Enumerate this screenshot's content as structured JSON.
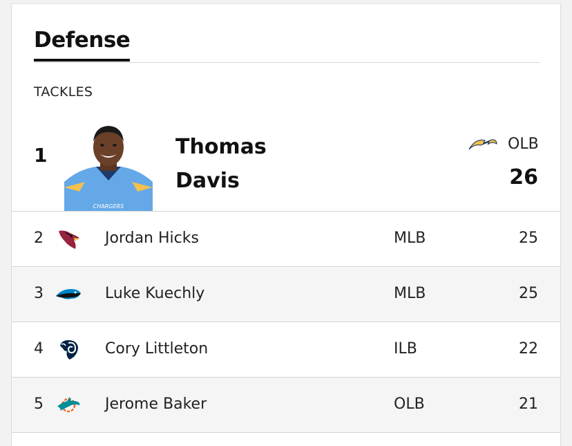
{
  "section": {
    "tab_label": "Defense",
    "stat_label": "TACKLES"
  },
  "leader": {
    "rank": "1",
    "first_name": "Thomas",
    "last_name": "Davis",
    "position": "OLB",
    "value": "26",
    "team_icon": "chargers-bolt-icon"
  },
  "rows": [
    {
      "rank": "2",
      "name": "Jordan Hicks",
      "position": "MLB",
      "value": "25",
      "team_icon": "cardinals-icon"
    },
    {
      "rank": "3",
      "name": "Luke Kuechly",
      "position": "MLB",
      "value": "25",
      "team_icon": "panthers-icon"
    },
    {
      "rank": "4",
      "name": "Cory Littleton",
      "position": "ILB",
      "value": "22",
      "team_icon": "rams-icon"
    },
    {
      "rank": "5",
      "name": "Jerome Baker",
      "position": "OLB",
      "value": "21",
      "team_icon": "dolphins-icon"
    }
  ],
  "colors": {
    "text": "#111111",
    "alt_row": "#f5f5f5",
    "divider": "#d4d4d4",
    "chargers_gold": "#f2c14e",
    "cardinals_red": "#97233f",
    "panthers_blue": "#0085ca",
    "rams_navy": "#002244",
    "dolphins_aqua": "#008e97"
  }
}
